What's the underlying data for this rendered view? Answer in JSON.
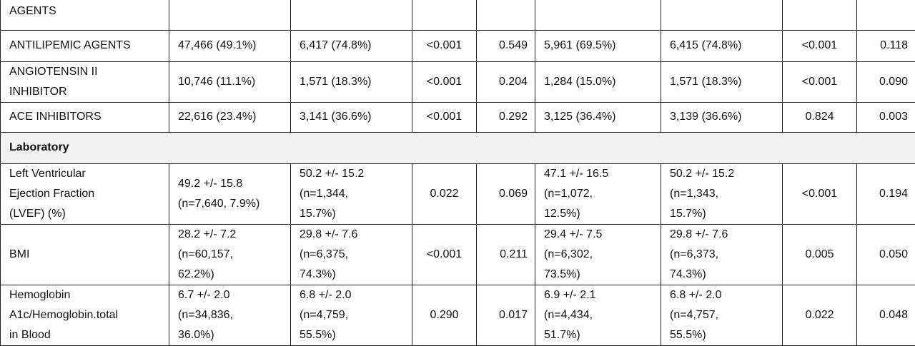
{
  "table": {
    "rows": [
      [
        "AGENTS",
        "",
        "",
        "",
        "",
        "",
        "",
        "",
        ""
      ],
      [
        "ANTILIPEMIC AGENTS",
        "47,466 (49.1%)",
        "6,417 (74.8%)",
        "<0.001",
        "0.549",
        "5,961 (69.5%)",
        "6,415 (74.8%)",
        "<0.001",
        "0.118"
      ],
      [
        "ANGIOTENSIN II\nINHIBITOR",
        "10,746 (11.1%)",
        "1,571 (18.3%)",
        "<0.001",
        "0.204",
        "1,284 (15.0%)",
        "1,571 (18.3%)",
        "<0.001",
        "0.090"
      ],
      [
        "ACE INHIBITORS",
        "22,616 (23.4%)",
        "3,141 (36.6%)",
        "<0.001",
        "0.292",
        "3,125 (36.4%)",
        "3,139 (36.6%)",
        "0.824",
        "0.003"
      ],
      [
        "Laboratory"
      ],
      [
        "Left Ventricular\nEjection Fraction\n(LVEF) (%)",
        "49.2 +/- 15.8\n(n=7,640, 7.9%)",
        "50.2 +/- 15.2\n(n=1,344,\n15.7%)",
        "0.022",
        "0.069",
        "47.1 +/- 16.5\n(n=1,072,\n12.5%)",
        "50.2 +/- 15.2\n(n=1,343,\n15.7%)",
        "<0.001",
        "0.194"
      ],
      [
        "BMI",
        "28.2 +/- 7.2\n(n=60,157,\n62.2%)",
        "29.8 +/- 7.6\n(n=6,375,\n74.3%)",
        "<0.001",
        "0.211",
        "29.4 +/- 7.5\n(n=6,302,\n73.5%)",
        "29.8 +/- 7.6\n(n=6,373,\n74.3%)",
        "0.005",
        "0.050"
      ],
      [
        "Hemoglobin\nA1c/Hemoglobin.total\nin Blood",
        "6.7 +/- 2.0\n(n=34,836,\n36.0%)",
        "6.8 +/- 2.0\n(n=4,759,\n55.5%)",
        "0.290",
        "0.017",
        "6.9 +/- 2.1\n(n=4,434,\n51.7%)",
        "6.8 +/- 2.0\n(n=4,757,\n55.5%)",
        "0.022",
        "0.048"
      ]
    ]
  }
}
